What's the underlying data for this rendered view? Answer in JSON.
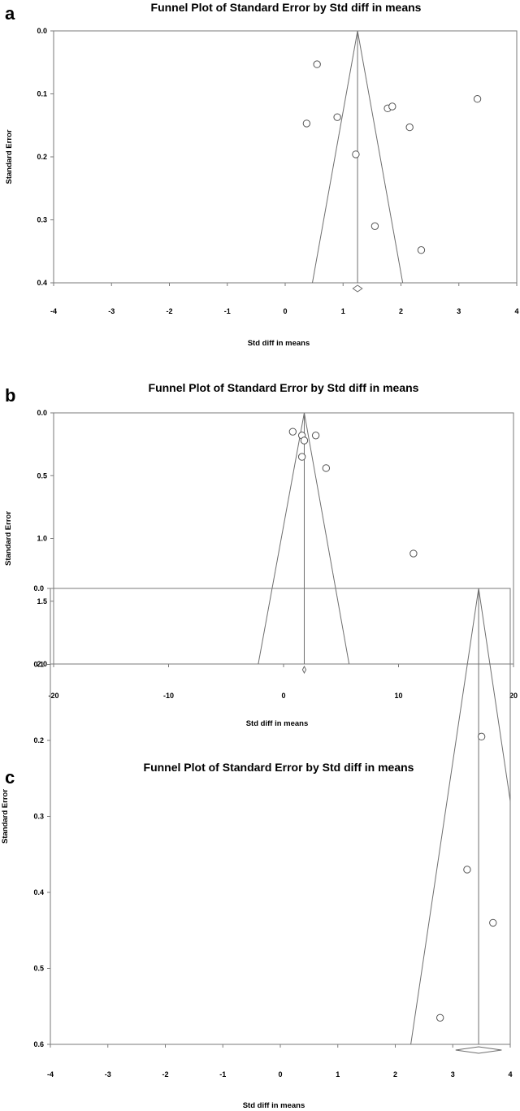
{
  "chart_data": [
    {
      "type": "scatter",
      "panel": "a",
      "title": "Funnel Plot of Standard Error by Std diff in means",
      "xlabel": "Std diff in means",
      "ylabel": "Standard Error",
      "xlim": [
        -4,
        4
      ],
      "ylim": [
        0.0,
        0.4
      ],
      "y_inverted": true,
      "x_ticks": [
        "-4",
        "-3",
        "-2",
        "-1",
        "0",
        "1",
        "2",
        "3",
        "4"
      ],
      "y_ticks": [
        "0.0",
        "0.1",
        "0.2",
        "0.3",
        "0.4"
      ],
      "summary_effect": 1.25,
      "funnel_limits_at_max_se": [
        0.47,
        2.03
      ],
      "diamond": {
        "center": 1.25,
        "low": 1.17,
        "high": 1.33
      },
      "points": [
        {
          "x": 0.55,
          "y": 0.053
        },
        {
          "x": 0.37,
          "y": 0.147
        },
        {
          "x": 0.9,
          "y": 0.137
        },
        {
          "x": 1.22,
          "y": 0.196
        },
        {
          "x": 1.77,
          "y": 0.123
        },
        {
          "x": 1.85,
          "y": 0.12
        },
        {
          "x": 2.15,
          "y": 0.153
        },
        {
          "x": 3.32,
          "y": 0.108
        },
        {
          "x": 1.55,
          "y": 0.31
        },
        {
          "x": 2.35,
          "y": 0.348
        }
      ]
    },
    {
      "type": "scatter",
      "panel": "b",
      "title": "Funnel Plot of Standard Error by Std diff in means",
      "xlabel": "Std diff in means",
      "ylabel": "Standard Error",
      "xlim": [
        -20,
        20
      ],
      "ylim": [
        0.0,
        2.0
      ],
      "y_inverted": true,
      "x_ticks": [
        "-20",
        "-10",
        "0",
        "10",
        "20"
      ],
      "y_ticks": [
        "0.0",
        "0.5",
        "1.0",
        "1.5",
        "2.0"
      ],
      "summary_effect": 1.8,
      "funnel_limits_at_max_se": [
        -2.2,
        5.7
      ],
      "diamond": {
        "center": 1.8,
        "low": 1.65,
        "high": 1.95
      },
      "points": [
        {
          "x": 0.8,
          "y": 0.15
        },
        {
          "x": 1.6,
          "y": 0.18
        },
        {
          "x": 1.8,
          "y": 0.22
        },
        {
          "x": 2.8,
          "y": 0.18
        },
        {
          "x": 1.6,
          "y": 0.35
        },
        {
          "x": 3.7,
          "y": 0.44
        },
        {
          "x": 11.3,
          "y": 1.12
        }
      ]
    },
    {
      "type": "scatter",
      "panel": "c",
      "title": "Funnel Plot of Standard Error by Std diff in means",
      "xlabel": "Std diff in means",
      "ylabel": "Standard Error",
      "xlim": [
        -4,
        4
      ],
      "ylim": [
        0.0,
        0.6
      ],
      "y_inverted": true,
      "x_ticks": [
        "-4",
        "-3",
        "-2",
        "-1",
        "0",
        "1",
        "2",
        "3",
        "4"
      ],
      "y_ticks": [
        "0.0",
        "0.1",
        "0.2",
        "0.3",
        "0.4",
        "0.5",
        "0.6"
      ],
      "summary_effect": 3.45,
      "funnel_limits_at_max_se": [
        2.27,
        4.63
      ],
      "diamond": {
        "center": 3.45,
        "low": 3.05,
        "high": 3.85
      },
      "points": [
        {
          "x": 3.5,
          "y": 0.195
        },
        {
          "x": 3.25,
          "y": 0.37
        },
        {
          "x": 3.7,
          "y": 0.44
        },
        {
          "x": 2.78,
          "y": 0.565
        }
      ]
    }
  ]
}
